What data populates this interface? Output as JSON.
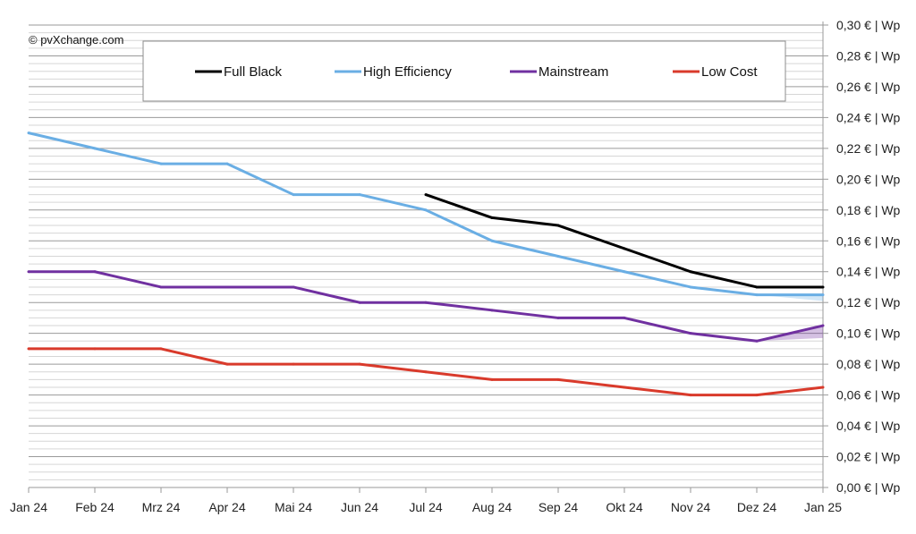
{
  "copyright": "© pvXchange.com",
  "chart_data": {
    "type": "line",
    "categories": [
      "Jan 24",
      "Feb 24",
      "Mrz 24",
      "Apr 24",
      "Mai 24",
      "Jun 24",
      "Jul 24",
      "Aug 24",
      "Sep 24",
      "Okt 24",
      "Nov 24",
      "Dez 24",
      "Jan 25"
    ],
    "ylim": [
      0,
      0.3
    ],
    "yticks": [
      {
        "value": 0.0,
        "label": "0,00 € | Wp"
      },
      {
        "value": 0.02,
        "label": "0,02 € | Wp"
      },
      {
        "value": 0.04,
        "label": "0,04 € | Wp"
      },
      {
        "value": 0.06,
        "label": "0,06 € | Wp"
      },
      {
        "value": 0.08,
        "label": "0,08 € | Wp"
      },
      {
        "value": 0.1,
        "label": "0,10 € | Wp"
      },
      {
        "value": 0.12,
        "label": "0,12 € | Wp"
      },
      {
        "value": 0.14,
        "label": "0,14 € | Wp"
      },
      {
        "value": 0.16,
        "label": "0,16 € | Wp"
      },
      {
        "value": 0.18,
        "label": "0,18 € | Wp"
      },
      {
        "value": 0.2,
        "label": "0,20 € | Wp"
      },
      {
        "value": 0.22,
        "label": "0,22 € | Wp"
      },
      {
        "value": 0.24,
        "label": "0,24 € | Wp"
      },
      {
        "value": 0.26,
        "label": "0,26 € | Wp"
      },
      {
        "value": 0.28,
        "label": "0,28 € | Wp"
      },
      {
        "value": 0.3,
        "label": "0,30 € | Wp"
      }
    ],
    "grid": true,
    "legend_position": "top",
    "series": [
      {
        "name": "Full Black",
        "color": "#000000",
        "values": [
          null,
          null,
          null,
          null,
          null,
          null,
          0.19,
          0.175,
          0.17,
          0.155,
          0.14,
          0.13,
          0.13
        ]
      },
      {
        "name": "High Efficiency",
        "color": "#6aaee4",
        "values": [
          0.23,
          0.22,
          0.21,
          0.21,
          0.19,
          0.19,
          0.18,
          0.16,
          0.15,
          0.14,
          0.13,
          0.125,
          0.125
        ],
        "band": {
          "from": 11,
          "upper": [
            0.125,
            0.125
          ],
          "lower": [
            0.125,
            0.121
          ]
        }
      },
      {
        "name": "Mainstream",
        "color": "#7030a0",
        "values": [
          0.14,
          0.14,
          0.13,
          0.13,
          0.13,
          0.12,
          0.12,
          0.115,
          0.11,
          0.11,
          0.1,
          0.095,
          0.105
        ],
        "band": {
          "from": 11,
          "upper": [
            0.095,
            0.105
          ],
          "lower": [
            0.095,
            0.097
          ]
        }
      },
      {
        "name": "Low Cost",
        "color": "#d93a2b",
        "values": [
          0.09,
          0.09,
          0.09,
          0.08,
          0.08,
          0.08,
          0.075,
          0.07,
          0.07,
          0.065,
          0.06,
          0.06,
          0.065
        ]
      }
    ]
  }
}
